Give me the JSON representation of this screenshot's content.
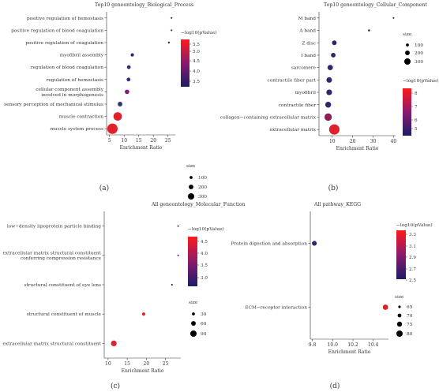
{
  "chart_data": [
    {
      "type": "scatter",
      "panel_label": "(a)",
      "title": "Top10 geneontology_Biological_Process",
      "xlabel": "Enrichment Ratio",
      "xlim": [
        4,
        27.5
      ],
      "xticks": [
        5,
        10,
        15,
        20,
        25
      ],
      "categories": [
        "positive regulation of hemostasis",
        "positive regulation of blood coagulation",
        "positive regulation of coagulation",
        "myofibril assembly",
        "regulation of blood coagulation",
        "regulation of hemostasis",
        "cellular component assembly\ninvolved in morphogenesis",
        "sensory perception of mechanical stimulus",
        "muscle contraction",
        "muscle system process"
      ],
      "points": [
        {
          "x": 26.2,
          "size": 8,
          "color": "#2a2a6a"
        },
        {
          "x": 26.2,
          "size": 8,
          "color": "#2a2a6a"
        },
        {
          "x": 25.3,
          "size": 10,
          "color": "#2a2a6a"
        },
        {
          "x": 12.8,
          "size": 30,
          "color": "#2a2a6a"
        },
        {
          "x": 11.6,
          "size": 40,
          "color": "#2e2e72"
        },
        {
          "x": 11.5,
          "size": 40,
          "color": "#2e2e72"
        },
        {
          "x": 11.0,
          "size": 55,
          "color": "#7a1f7c"
        },
        {
          "x": 8.6,
          "size": 60,
          "color": "#35357d"
        },
        {
          "x": 7.8,
          "size": 200,
          "color": "#e0202a"
        },
        {
          "x": 6.0,
          "size": 300,
          "color": "#e0202a"
        }
      ],
      "color_legend": {
        "title": "−log10(pValue)",
        "ticks": [
          "5.5",
          "5.0",
          "4.5",
          "4.0",
          "3.5"
        ]
      },
      "size_legend": {
        "title": "size",
        "entries": [
          "100",
          "200",
          "300"
        ]
      }
    },
    {
      "type": "scatter",
      "panel_label": "(b)",
      "title": "Top10 geneontology_Cellular_Component",
      "xlabel": "Enrichment Ratio",
      "xlim": [
        3.5,
        41
      ],
      "xticks": [
        10,
        20,
        30,
        40
      ],
      "categories": [
        "M band",
        "A band",
        "Z disc",
        "I band",
        "sarcomere",
        "contractile fiber part",
        "myofibril",
        "contractile fiber",
        "collagen−containing extracellular matrix",
        "extracellular matrix"
      ],
      "points": [
        {
          "x": 40.0,
          "size": 8,
          "color": "#2a2a6a"
        },
        {
          "x": 28.0,
          "size": 12,
          "color": "#2a2a6a"
        },
        {
          "x": 11.0,
          "size": 60,
          "color": "#2a2a6a"
        },
        {
          "x": 10.5,
          "size": 60,
          "color": "#2a2a6a"
        },
        {
          "x": 9.0,
          "size": 80,
          "color": "#2a2a6a"
        },
        {
          "x": 8.5,
          "size": 85,
          "color": "#2a2a6a"
        },
        {
          "x": 8.5,
          "size": 90,
          "color": "#2a2a6a"
        },
        {
          "x": 8.0,
          "size": 95,
          "color": "#2a2a6a"
        },
        {
          "x": 8.0,
          "size": 150,
          "color": "#8a1f55"
        },
        {
          "x": 11.0,
          "size": 300,
          "color": "#e0202a"
        }
      ],
      "color_legend": {
        "title": "−log10(pValue)",
        "ticks": [
          "8",
          "7",
          "6",
          "5"
        ]
      },
      "size_legend": {
        "title": "size",
        "entries": [
          "100",
          "200",
          "300"
        ]
      }
    },
    {
      "type": "scatter",
      "panel_label": "(c)",
      "title": "All geneontology_Molecular_Function",
      "xlabel": "Enrichment Ratio",
      "xlim": [
        9,
        29
      ],
      "xticks": [
        10,
        15,
        20,
        25
      ],
      "categories": [
        "low−density lipoprotein particle binding",
        "extracellular matrix structural constituent\nconferring compression resistance",
        "structural constituent of eye lens",
        "structural constituent of muscle",
        "extracellular matrix structural constituent"
      ],
      "points": [
        {
          "x": 28.3,
          "size": 5,
          "color": "#2a2a6a"
        },
        {
          "x": 28.3,
          "size": 5,
          "color": "#2a2a6a"
        },
        {
          "x": 26.7,
          "size": 8,
          "color": "#2a2a6a"
        },
        {
          "x": 19.3,
          "size": 30,
          "color": "#e0202a"
        },
        {
          "x": 11.5,
          "size": 90,
          "color": "#e0202a"
        }
      ],
      "color_legend": {
        "title": "−log10(pValue)",
        "ticks": [
          "4.5",
          "4.0",
          "3.5",
          "3.0"
        ]
      },
      "size_legend": {
        "title": "size",
        "entries": [
          "30",
          "60",
          "90"
        ]
      }
    },
    {
      "type": "scatter",
      "panel_label": "(d)",
      "title": "All pathway_KEGG",
      "xlabel": "Enrichment Ratio",
      "xlim": [
        9.78,
        10.55
      ],
      "xticks": [
        "9.8",
        "10.0",
        "10.2",
        "10.4"
      ],
      "categories": [
        "Protein digestion and absorption",
        "ECM−receptor interaction"
      ],
      "points": [
        {
          "x": 9.82,
          "size": 65,
          "color": "#2a2a6a"
        },
        {
          "x": 10.52,
          "size": 80,
          "color": "#e0202a"
        }
      ],
      "color_legend": {
        "title": "−log10(pValue)",
        "ticks": [
          "3.3",
          "3.1",
          "2.9",
          "2.7",
          "2.5"
        ]
      },
      "size_legend": {
        "title": "size",
        "entries": [
          "65",
          "70",
          "75",
          "80"
        ]
      }
    }
  ]
}
